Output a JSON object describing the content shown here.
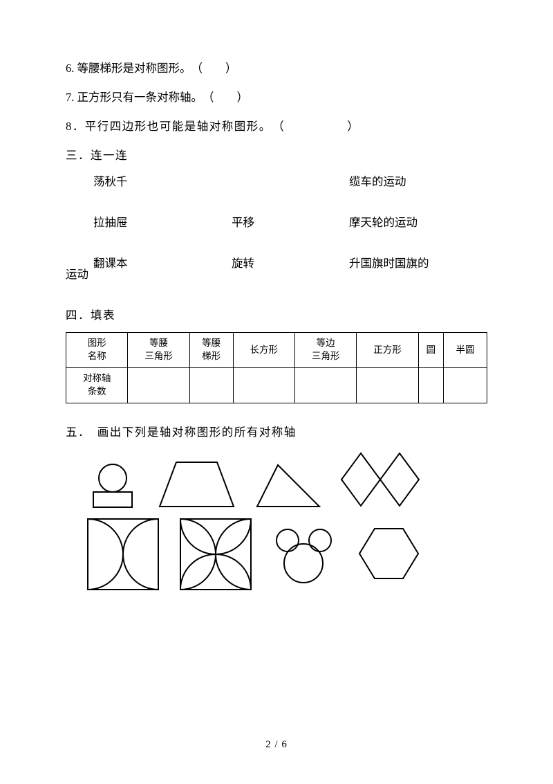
{
  "q6": "6. 等腰梯形是对称图形。　（　　）",
  "q7": "7. 正方形只有一条对称轴。　（　　）",
  "q8": "8．平行四边形也可能是轴对称图形。　（　　　　　）",
  "section3": "三．连一连",
  "match": {
    "r1c1": "荡秋千",
    "r1c3": "缆车的运动",
    "r2c1": "拉抽屉",
    "r2c2": "平移",
    "r2c3": "摩天轮的运动",
    "r3c1": "翻课本",
    "r3c2": "旋转",
    "r3c3": "升国旗时国旗的"
  },
  "matchTrail": "运动",
  "section4": "四．填表",
  "table": {
    "h1": "图形\n名称",
    "h2": "等腰\n三角形",
    "h3": "等腰\n梯形",
    "h4": "长方形",
    "h5": "等边\n三角形",
    "h6": "正方形",
    "h7": "圆",
    "h8": "半圆",
    "r2": "对称轴\n条数"
  },
  "section5": "五．　画出下列是轴对称图形的所有对称轴",
  "pageNumber": "2 / 6",
  "stroke": "#000000",
  "strokeWidth": 2
}
